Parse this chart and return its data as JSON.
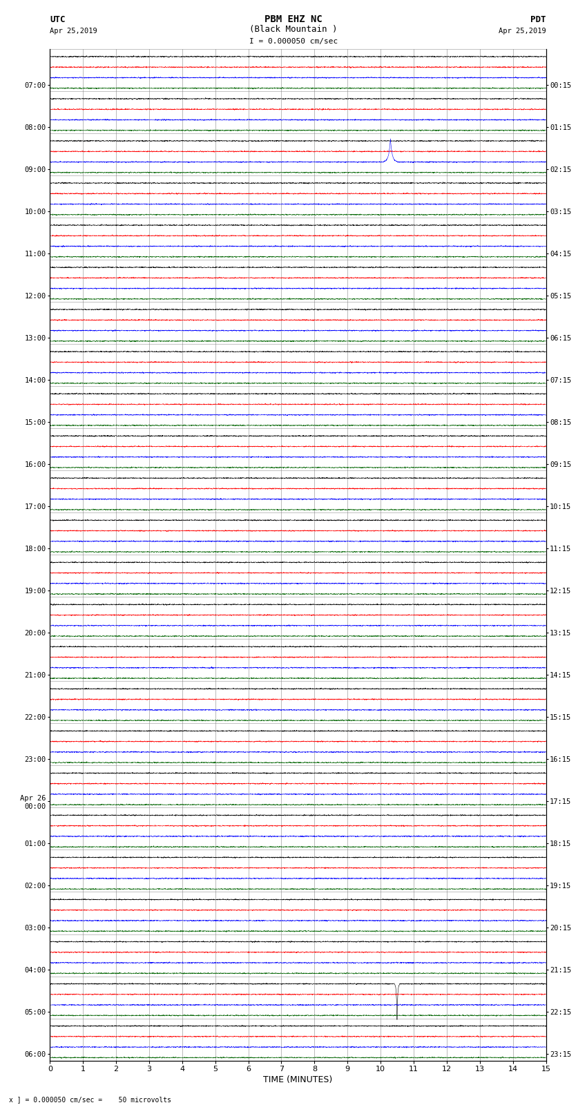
{
  "title_line1": "PBM EHZ NC",
  "title_line2": "(Black Mountain )",
  "scale_text": "I = 0.000050 cm/sec",
  "left_label": "UTC",
  "left_date": "Apr 25,2019",
  "right_label": "PDT",
  "right_date": "Apr 25,2019",
  "xlabel": "TIME (MINUTES)",
  "bottom_text": "x ] = 0.000050 cm/sec =    50 microvolts",
  "utc_times": [
    "07:00",
    "08:00",
    "09:00",
    "10:00",
    "11:00",
    "12:00",
    "13:00",
    "14:00",
    "15:00",
    "16:00",
    "17:00",
    "18:00",
    "19:00",
    "20:00",
    "21:00",
    "22:00",
    "23:00",
    "Apr 26\n00:00",
    "01:00",
    "02:00",
    "03:00",
    "04:00",
    "05:00",
    "06:00"
  ],
  "pdt_times": [
    "00:15",
    "01:15",
    "02:15",
    "03:15",
    "04:15",
    "05:15",
    "06:15",
    "07:15",
    "08:15",
    "09:15",
    "10:15",
    "11:15",
    "12:15",
    "13:15",
    "14:15",
    "15:15",
    "16:15",
    "17:15",
    "18:15",
    "19:15",
    "20:15",
    "21:15",
    "22:15",
    "23:15"
  ],
  "n_rows": 24,
  "n_minutes": 15,
  "trace_colors": [
    "black",
    "red",
    "blue",
    "darkgreen"
  ],
  "noise_amplitude": 0.006,
  "blue_spike_row": 2,
  "blue_spike_minute": 10.3,
  "blue_spike_amplitude": 0.55,
  "black_spike_row": 22,
  "black_spike_minute": 10.5,
  "black_spike_amplitude": 0.85,
  "bg_color": "white",
  "grid_color": "#777777",
  "font_size": 8,
  "title_font_size": 10
}
